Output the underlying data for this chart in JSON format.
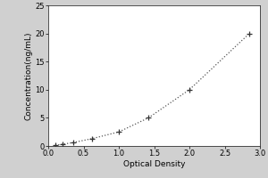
{
  "xlabel": "Optical Density",
  "ylabel": "Concentration(ng/mL)",
  "x_data": [
    0.1,
    0.2,
    0.35,
    0.62,
    1.0,
    1.42,
    2.0,
    2.85
  ],
  "y_data": [
    0.15,
    0.3,
    0.6,
    1.3,
    2.5,
    5.0,
    10.0,
    20.0
  ],
  "xlim": [
    0,
    3.0
  ],
  "ylim": [
    0,
    25
  ],
  "xticks": [
    0,
    0.5,
    1.0,
    1.5,
    2.0,
    2.5,
    3.0
  ],
  "yticks": [
    0,
    5,
    10,
    15,
    20,
    25
  ],
  "line_color": "#555555",
  "marker": "+",
  "marker_color": "#333333",
  "marker_size": 5,
  "line_style": "dotted",
  "background_color": "#d0d0d0",
  "plot_bg_color": "#ffffff",
  "font_size_label": 6.5,
  "font_size_tick": 6
}
